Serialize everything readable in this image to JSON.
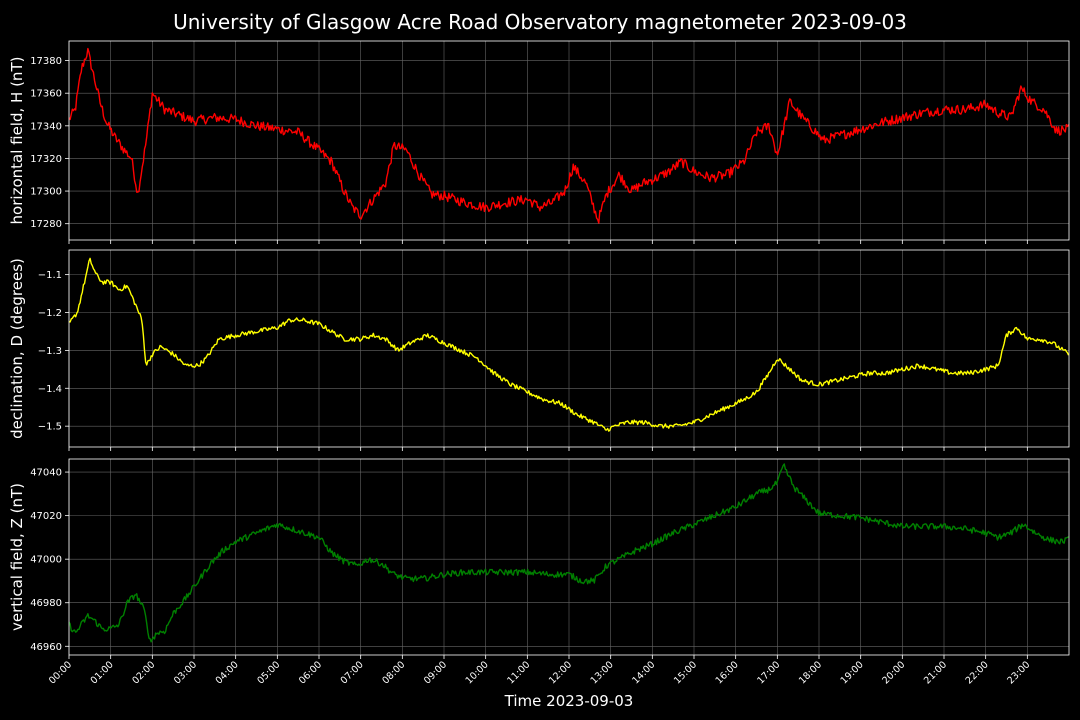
{
  "title": "University of Glasgow Acre Road Observatory magnetometer 2023-09-03",
  "xlabel": "Time 2023-09-03",
  "colors": {
    "background": "#000000",
    "grid": "#666666",
    "axes": "#ffffff",
    "H": "#ff0000",
    "D": "#ffff00",
    "Z": "#008000"
  },
  "chart_data": [
    {
      "type": "line",
      "ylabel": "horizontal field, H (nT)",
      "series": [
        {
          "color": "#ff0000",
          "x": [
            0,
            0.15,
            0.3,
            0.45,
            0.6,
            0.75,
            0.9,
            1.1,
            1.3,
            1.5,
            1.65,
            1.85,
            2.0,
            2.3,
            2.6,
            3.0,
            3.5,
            4.0,
            4.5,
            5.0,
            5.5,
            6.0,
            6.3,
            6.6,
            6.8,
            7.0,
            7.3,
            7.6,
            7.8,
            8.1,
            8.4,
            8.7,
            9.0,
            9.5,
            10.0,
            10.5,
            11.0,
            11.3,
            11.6,
            11.9,
            12.1,
            12.4,
            12.7,
            12.9,
            13.2,
            13.5,
            13.8,
            14.1,
            14.4,
            14.7,
            15.0,
            15.4,
            15.8,
            16.2,
            16.5,
            16.8,
            17.0,
            17.3,
            17.6,
            17.9,
            18.1,
            18.5,
            19.0,
            19.5,
            20.0,
            20.5,
            21.0,
            21.5,
            22.0,
            22.3,
            22.6,
            22.85,
            23.1,
            23.4,
            23.7,
            23.99
          ],
          "y": [
            17344,
            17350,
            17375,
            17386,
            17370,
            17354,
            17342,
            17333,
            17326,
            17320,
            17298,
            17330,
            17360,
            17350,
            17347,
            17343,
            17345,
            17344,
            17340,
            17338,
            17336,
            17325,
            17318,
            17300,
            17290,
            17285,
            17295,
            17305,
            17328,
            17325,
            17310,
            17298,
            17297,
            17293,
            17290,
            17293,
            17295,
            17290,
            17293,
            17300,
            17315,
            17305,
            17282,
            17298,
            17310,
            17300,
            17305,
            17308,
            17312,
            17318,
            17312,
            17308,
            17310,
            17318,
            17336,
            17340,
            17322,
            17355,
            17345,
            17337,
            17331,
            17334,
            17338,
            17342,
            17345,
            17348,
            17350,
            17350,
            17353,
            17348,
            17345,
            17363,
            17355,
            17350,
            17337,
            17338
          ],
          "noise": 3
        }
      ],
      "ylim": [
        17270,
        17392
      ],
      "yticks": [
        17280,
        17300,
        17320,
        17340,
        17360,
        17380
      ]
    },
    {
      "type": "line",
      "ylabel": "declination, D (degrees)",
      "series": [
        {
          "color": "#ffff00",
          "x": [
            0,
            0.2,
            0.35,
            0.5,
            0.65,
            0.8,
            1.0,
            1.2,
            1.4,
            1.6,
            1.75,
            1.85,
            2.0,
            2.2,
            2.5,
            2.8,
            3.1,
            3.3,
            3.6,
            4.0,
            4.5,
            5.0,
            5.3,
            5.6,
            6.0,
            6.3,
            6.6,
            7.0,
            7.3,
            7.6,
            7.9,
            8.2,
            8.6,
            9.0,
            9.4,
            9.8,
            10.2,
            10.6,
            11.0,
            11.4,
            11.8,
            12.2,
            12.6,
            12.9,
            13.1,
            13.4,
            13.8,
            14.2,
            14.6,
            15.0,
            15.4,
            15.8,
            16.2,
            16.5,
            16.8,
            17.0,
            17.3,
            17.6,
            18.0,
            18.4,
            18.8,
            19.2,
            19.6,
            20.0,
            20.4,
            20.8,
            21.2,
            21.6,
            22.0,
            22.3,
            22.5,
            22.75,
            23.0,
            23.3,
            23.6,
            23.99
          ],
          "y": [
            -1.23,
            -1.2,
            -1.13,
            -1.06,
            -1.1,
            -1.12,
            -1.12,
            -1.14,
            -1.13,
            -1.18,
            -1.22,
            -1.34,
            -1.31,
            -1.29,
            -1.31,
            -1.34,
            -1.34,
            -1.32,
            -1.27,
            -1.26,
            -1.25,
            -1.24,
            -1.22,
            -1.22,
            -1.23,
            -1.25,
            -1.27,
            -1.27,
            -1.26,
            -1.27,
            -1.3,
            -1.28,
            -1.26,
            -1.28,
            -1.3,
            -1.32,
            -1.36,
            -1.39,
            -1.41,
            -1.43,
            -1.44,
            -1.47,
            -1.49,
            -1.51,
            -1.5,
            -1.49,
            -1.49,
            -1.5,
            -1.5,
            -1.49,
            -1.47,
            -1.45,
            -1.43,
            -1.41,
            -1.36,
            -1.32,
            -1.35,
            -1.38,
            -1.39,
            -1.38,
            -1.37,
            -1.36,
            -1.36,
            -1.35,
            -1.34,
            -1.35,
            -1.36,
            -1.36,
            -1.35,
            -1.34,
            -1.26,
            -1.24,
            -1.27,
            -1.27,
            -1.28,
            -1.31
          ],
          "noise": 0.006
        }
      ],
      "ylim": [
        -1.555,
        -1.035
      ],
      "yticks": [
        -1.5,
        -1.4,
        -1.3,
        -1.2,
        -1.1
      ],
      "yticklabels": [
        "−1.5",
        "−1.4",
        "−1.3",
        "−1.2",
        "−1.1"
      ]
    },
    {
      "type": "line",
      "ylabel": "vertical field, Z (nT)",
      "series": [
        {
          "color": "#008000",
          "x": [
            0,
            0.15,
            0.3,
            0.45,
            0.6,
            0.8,
            1.0,
            1.2,
            1.4,
            1.6,
            1.8,
            1.95,
            2.1,
            2.3,
            2.5,
            2.8,
            3.1,
            3.4,
            3.7,
            4.0,
            4.5,
            5.0,
            5.5,
            6.0,
            6.3,
            6.6,
            6.9,
            7.2,
            7.5,
            7.8,
            8.1,
            8.5,
            9.0,
            9.5,
            10.0,
            10.5,
            11.0,
            11.5,
            12.0,
            12.3,
            12.6,
            12.9,
            13.2,
            13.6,
            14.0,
            14.5,
            15.0,
            15.5,
            16.0,
            16.5,
            16.8,
            17.0,
            17.15,
            17.4,
            17.7,
            18.0,
            18.5,
            19.0,
            19.5,
            20.0,
            20.5,
            21.0,
            21.5,
            22.0,
            22.3,
            22.6,
            22.9,
            23.2,
            23.5,
            23.8,
            23.99
          ],
          "y": [
            46970,
            46966,
            46970,
            46974,
            46972,
            46968,
            46968,
            46970,
            46980,
            46984,
            46977,
            46962,
            46966,
            46967,
            46975,
            46982,
            46990,
            46998,
            47004,
            47008,
            47012,
            47016,
            47013,
            47010,
            47003,
            46999,
            46997,
            47000,
            46998,
            46993,
            46991,
            46991,
            46993,
            46994,
            46994,
            46994,
            46994,
            46993,
            46993,
            46990,
            46990,
            46997,
            47000,
            47004,
            47007,
            47012,
            47016,
            47020,
            47024,
            47030,
            47032,
            47035,
            47043,
            47033,
            47027,
            47021,
            47020,
            47019,
            47017,
            47015,
            47015,
            47015,
            47014,
            47012,
            47010,
            47012,
            47016,
            47012,
            47009,
            47008,
            47009
          ],
          "noise": 1.4
        }
      ],
      "ylim": [
        46956,
        47046
      ],
      "yticks": [
        46960,
        46980,
        47000,
        47020,
        47040
      ]
    }
  ],
  "xlim": [
    0,
    24
  ],
  "xticks": [
    "00:00",
    "01:00",
    "02:00",
    "03:00",
    "04:00",
    "05:00",
    "06:00",
    "07:00",
    "08:00",
    "09:00",
    "10:00",
    "11:00",
    "12:00",
    "13:00",
    "14:00",
    "15:00",
    "16:00",
    "17:00",
    "18:00",
    "19:00",
    "20:00",
    "21:00",
    "22:00",
    "23:00"
  ]
}
